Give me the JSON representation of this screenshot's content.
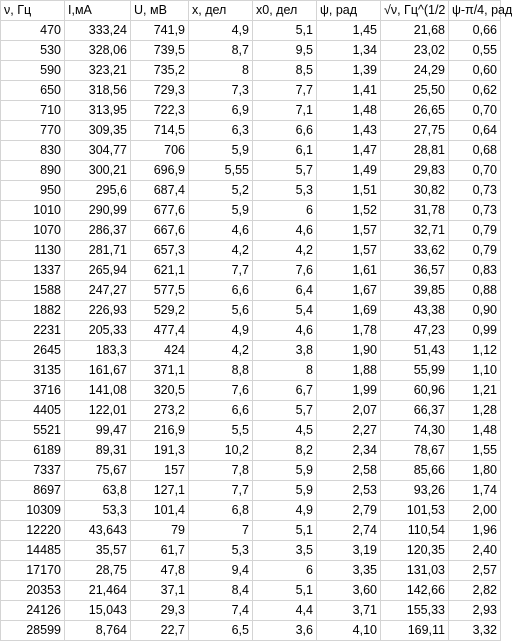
{
  "sheet": {
    "headers": [
      "ν, Гц",
      "I,мА",
      "U, мВ",
      "x, дел",
      "x0, дел",
      "ψ, рад",
      "√ν, Гц^(1/2",
      "ψ-π/4, рад"
    ],
    "rows": [
      [
        "470",
        "333,24",
        "741,9",
        "4,9",
        "5,1",
        "1,45",
        "21,68",
        "0,66"
      ],
      [
        "530",
        "328,06",
        "739,5",
        "8,7",
        "9,5",
        "1,34",
        "23,02",
        "0,55"
      ],
      [
        "590",
        "323,21",
        "735,2",
        "8",
        "8,5",
        "1,39",
        "24,29",
        "0,60"
      ],
      [
        "650",
        "318,56",
        "729,3",
        "7,3",
        "7,7",
        "1,41",
        "25,50",
        "0,62"
      ],
      [
        "710",
        "313,95",
        "722,3",
        "6,9",
        "7,1",
        "1,48",
        "26,65",
        "0,70"
      ],
      [
        "770",
        "309,35",
        "714,5",
        "6,3",
        "6,6",
        "1,43",
        "27,75",
        "0,64"
      ],
      [
        "830",
        "304,77",
        "706",
        "5,9",
        "6,1",
        "1,47",
        "28,81",
        "0,68"
      ],
      [
        "890",
        "300,21",
        "696,9",
        "5,55",
        "5,7",
        "1,49",
        "29,83",
        "0,70"
      ],
      [
        "950",
        "295,6",
        "687,4",
        "5,2",
        "5,3",
        "1,51",
        "30,82",
        "0,73"
      ],
      [
        "1010",
        "290,99",
        "677,6",
        "5,9",
        "6",
        "1,52",
        "31,78",
        "0,73"
      ],
      [
        "1070",
        "286,37",
        "667,6",
        "4,6",
        "4,6",
        "1,57",
        "32,71",
        "0,79"
      ],
      [
        "1130",
        "281,71",
        "657,3",
        "4,2",
        "4,2",
        "1,57",
        "33,62",
        "0,79"
      ],
      [
        "1337",
        "265,94",
        "621,1",
        "7,7",
        "7,6",
        "1,61",
        "36,57",
        "0,83"
      ],
      [
        "1588",
        "247,27",
        "577,5",
        "6,6",
        "6,4",
        "1,67",
        "39,85",
        "0,88"
      ],
      [
        "1882",
        "226,93",
        "529,2",
        "5,6",
        "5,4",
        "1,69",
        "43,38",
        "0,90"
      ],
      [
        "2231",
        "205,33",
        "477,4",
        "4,9",
        "4,6",
        "1,78",
        "47,23",
        "0,99"
      ],
      [
        "2645",
        "183,3",
        "424",
        "4,2",
        "3,8",
        "1,90",
        "51,43",
        "1,12"
      ],
      [
        "3135",
        "161,67",
        "371,1",
        "8,8",
        "8",
        "1,88",
        "55,99",
        "1,10"
      ],
      [
        "3716",
        "141,08",
        "320,5",
        "7,6",
        "6,7",
        "1,99",
        "60,96",
        "1,21"
      ],
      [
        "4405",
        "122,01",
        "273,2",
        "6,6",
        "5,7",
        "2,07",
        "66,37",
        "1,28"
      ],
      [
        "5521",
        "99,47",
        "216,9",
        "5,5",
        "4,5",
        "2,27",
        "74,30",
        "1,48"
      ],
      [
        "6189",
        "89,31",
        "191,3",
        "10,2",
        "8,2",
        "2,34",
        "78,67",
        "1,55"
      ],
      [
        "7337",
        "75,67",
        "157",
        "7,8",
        "5,9",
        "2,58",
        "85,66",
        "1,80"
      ],
      [
        "8697",
        "63,8",
        "127,1",
        "7,7",
        "5,9",
        "2,53",
        "93,26",
        "1,74"
      ],
      [
        "10309",
        "53,3",
        "101,4",
        "6,8",
        "4,9",
        "2,79",
        "101,53",
        "2,00"
      ],
      [
        "12220",
        "43,643",
        "79",
        "7",
        "5,1",
        "2,74",
        "110,54",
        "1,96"
      ],
      [
        "14485",
        "35,57",
        "61,7",
        "5,3",
        "3,5",
        "3,19",
        "120,35",
        "2,40"
      ],
      [
        "17170",
        "28,75",
        "47,8",
        "9,4",
        "6",
        "3,35",
        "131,03",
        "2,57"
      ],
      [
        "20353",
        "21,464",
        "37,1",
        "8,4",
        "5,1",
        "3,60",
        "142,66",
        "2,82"
      ],
      [
        "24126",
        "15,043",
        "29,3",
        "7,4",
        "4,4",
        "3,71",
        "155,33",
        "2,93"
      ],
      [
        "28599",
        "8,764",
        "22,7",
        "6,5",
        "3,6",
        "4,10",
        "169,11",
        "3,32"
      ]
    ]
  }
}
